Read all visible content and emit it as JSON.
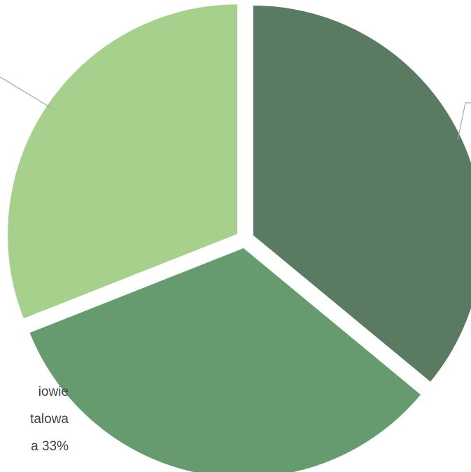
{
  "chart_data": {
    "type": "pie",
    "slices": [
      {
        "value": 36,
        "color": "#5A7A62"
      },
      {
        "value": 33,
        "color": "#659B6F"
      },
      {
        "value": 31,
        "color": "#A8D08D"
      }
    ],
    "partial_label_lines": [
      "iowie",
      "talowa",
      "a 33%"
    ]
  }
}
